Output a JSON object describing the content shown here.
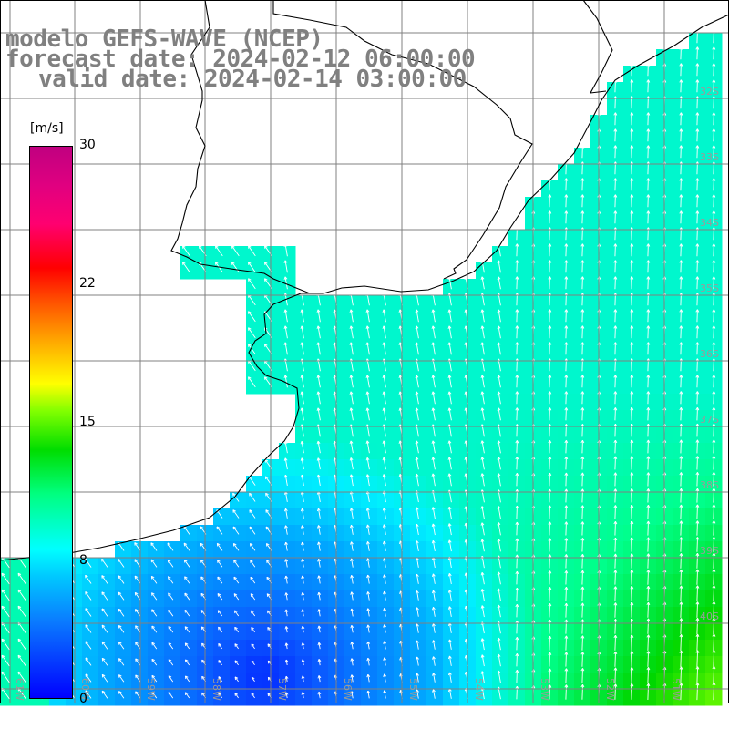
{
  "title": {
    "model": "modelo GEFS-WAVE (NCEP)",
    "forecast": "forecast date: 2024-02-12 06:00:00",
    "valid": "valid date: 2024-02-14 03:00:00"
  },
  "colorbar": {
    "unit": "[m/s]",
    "ticks": [
      "30",
      "22",
      "15",
      "8",
      "0"
    ],
    "tick_values": [
      30,
      22,
      15,
      8,
      0
    ],
    "range": [
      0,
      30
    ],
    "colors": [
      "#0000ff",
      "#00c8ff",
      "#00ffff",
      "#00dd00",
      "#ffff00",
      "#ff8000",
      "#ff0000",
      "#c00080"
    ]
  },
  "map": {
    "extent_lon": [
      -62,
      -51
    ],
    "extent_lat": [
      -41,
      -32
    ],
    "lat_labels": [
      "32S",
      "33S",
      "34S",
      "35S",
      "36S",
      "37S",
      "38S",
      "39S",
      "40S"
    ],
    "lon_labels": [
      "61W",
      "60W",
      "59W",
      "58W",
      "57W",
      "56W",
      "55W",
      "54W",
      "53W",
      "52W",
      "51W"
    ],
    "land_color": "#ffffff",
    "grid_color": "#808080",
    "coast_color": "#000000"
  }
}
